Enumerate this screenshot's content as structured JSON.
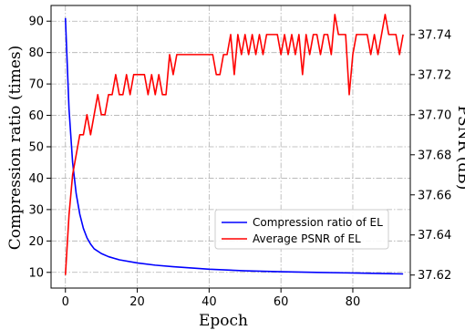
{
  "chart_data": {
    "type": "line",
    "xlabel": "Epoch",
    "ylabel_left": "Compression ratio (times)",
    "ylabel_right": "PSNR (dB)",
    "xlim": [
      -4,
      96
    ],
    "ylim_left": [
      5,
      95
    ],
    "ylim_right": [
      37.6135,
      37.7545
    ],
    "x_ticks": [
      0,
      20,
      40,
      60,
      80
    ],
    "y_left_ticks": [
      10,
      20,
      30,
      40,
      50,
      60,
      70,
      80,
      90
    ],
    "y_right_ticks": [
      37.62,
      37.64,
      37.66,
      37.68,
      37.7,
      37.72,
      37.74
    ],
    "y_right_tick_labels": [
      "37.62",
      "37.64",
      "37.66",
      "37.68",
      "37.70",
      "37.72",
      "37.74"
    ],
    "grid": true,
    "legend_position": "lower-right",
    "series": [
      {
        "name": "Compression ratio of EL",
        "axis": "left",
        "color": "#0000ff",
        "x": [
          0,
          1,
          2,
          3,
          4,
          5,
          6,
          7,
          8,
          10,
          12,
          15,
          20,
          25,
          30,
          40,
          50,
          60,
          70,
          80,
          90,
          94
        ],
        "values": [
          91,
          62,
          45,
          35,
          28.5,
          24,
          21,
          19,
          17.5,
          16,
          15,
          14,
          13,
          12.3,
          11.8,
          11,
          10.5,
          10.2,
          10,
          9.8,
          9.6,
          9.5
        ]
      },
      {
        "name": "Average PSNR of EL",
        "axis": "right",
        "color": "#ff0000",
        "x": [
          0,
          1,
          2,
          3,
          4,
          5,
          6,
          7,
          8,
          9,
          10,
          11,
          12,
          13,
          14,
          15,
          16,
          17,
          18,
          19,
          20,
          21,
          22,
          23,
          24,
          25,
          26,
          27,
          28,
          29,
          30,
          31,
          32,
          33,
          34,
          35,
          36,
          37,
          38,
          39,
          40,
          41,
          42,
          43,
          44,
          45,
          46,
          47,
          48,
          49,
          50,
          51,
          52,
          53,
          54,
          55,
          56,
          57,
          58,
          59,
          60,
          61,
          62,
          63,
          64,
          65,
          66,
          67,
          68,
          69,
          70,
          71,
          72,
          73,
          74,
          75,
          76,
          77,
          78,
          79,
          80,
          81,
          82,
          83,
          84,
          85,
          86,
          87,
          88,
          89,
          90,
          91,
          92,
          93,
          94
        ],
        "values": [
          37.62,
          37.65,
          37.67,
          37.68,
          37.69,
          37.69,
          37.7,
          37.69,
          37.7,
          37.71,
          37.7,
          37.7,
          37.71,
          37.71,
          37.72,
          37.71,
          37.71,
          37.72,
          37.71,
          37.72,
          37.72,
          37.72,
          37.72,
          37.71,
          37.72,
          37.71,
          37.72,
          37.71,
          37.71,
          37.73,
          37.72,
          37.73,
          37.73,
          37.73,
          37.73,
          37.73,
          37.73,
          37.73,
          37.73,
          37.73,
          37.73,
          37.73,
          37.72,
          37.72,
          37.73,
          37.73,
          37.74,
          37.72,
          37.74,
          37.73,
          37.74,
          37.73,
          37.74,
          37.73,
          37.74,
          37.73,
          37.74,
          37.74,
          37.74,
          37.74,
          37.73,
          37.74,
          37.73,
          37.74,
          37.73,
          37.74,
          37.72,
          37.74,
          37.73,
          37.74,
          37.74,
          37.73,
          37.74,
          37.74,
          37.73,
          37.75,
          37.74,
          37.74,
          37.74,
          37.71,
          37.73,
          37.74,
          37.74,
          37.74,
          37.74,
          37.73,
          37.74,
          37.73,
          37.74,
          37.75,
          37.74,
          37.74,
          37.74,
          37.73,
          37.74
        ]
      }
    ]
  }
}
